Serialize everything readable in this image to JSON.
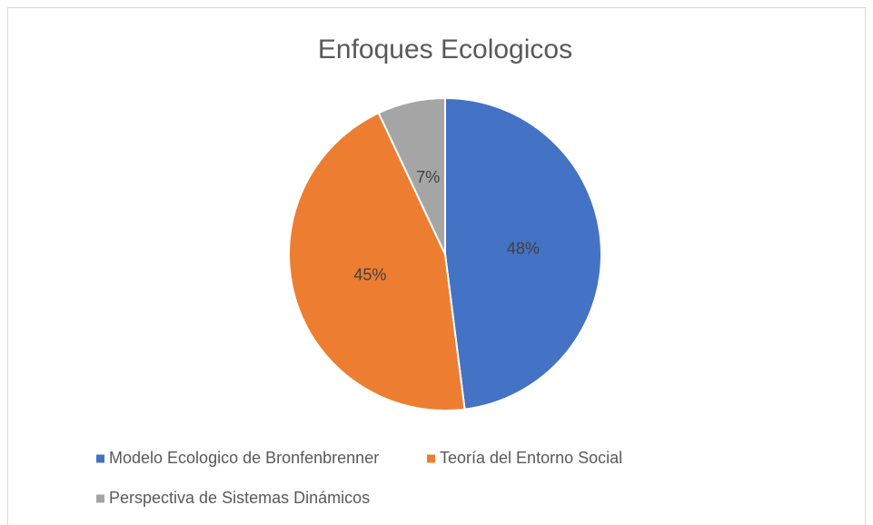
{
  "chart_data": {
    "type": "pie",
    "title": "Enfoques Ecologicos",
    "categories": [
      "Modelo Ecologico de Bronfenbrenner",
      "Teoría del Entorno Social",
      "Perspectiva de Sistemas Dinámicos"
    ],
    "values": [
      48,
      45,
      7
    ],
    "value_labels": [
      "48%",
      "45%",
      "7%"
    ],
    "colors": [
      "#4472c4",
      "#ed7d31",
      "#a5a5a5"
    ],
    "legend": "bottom"
  }
}
